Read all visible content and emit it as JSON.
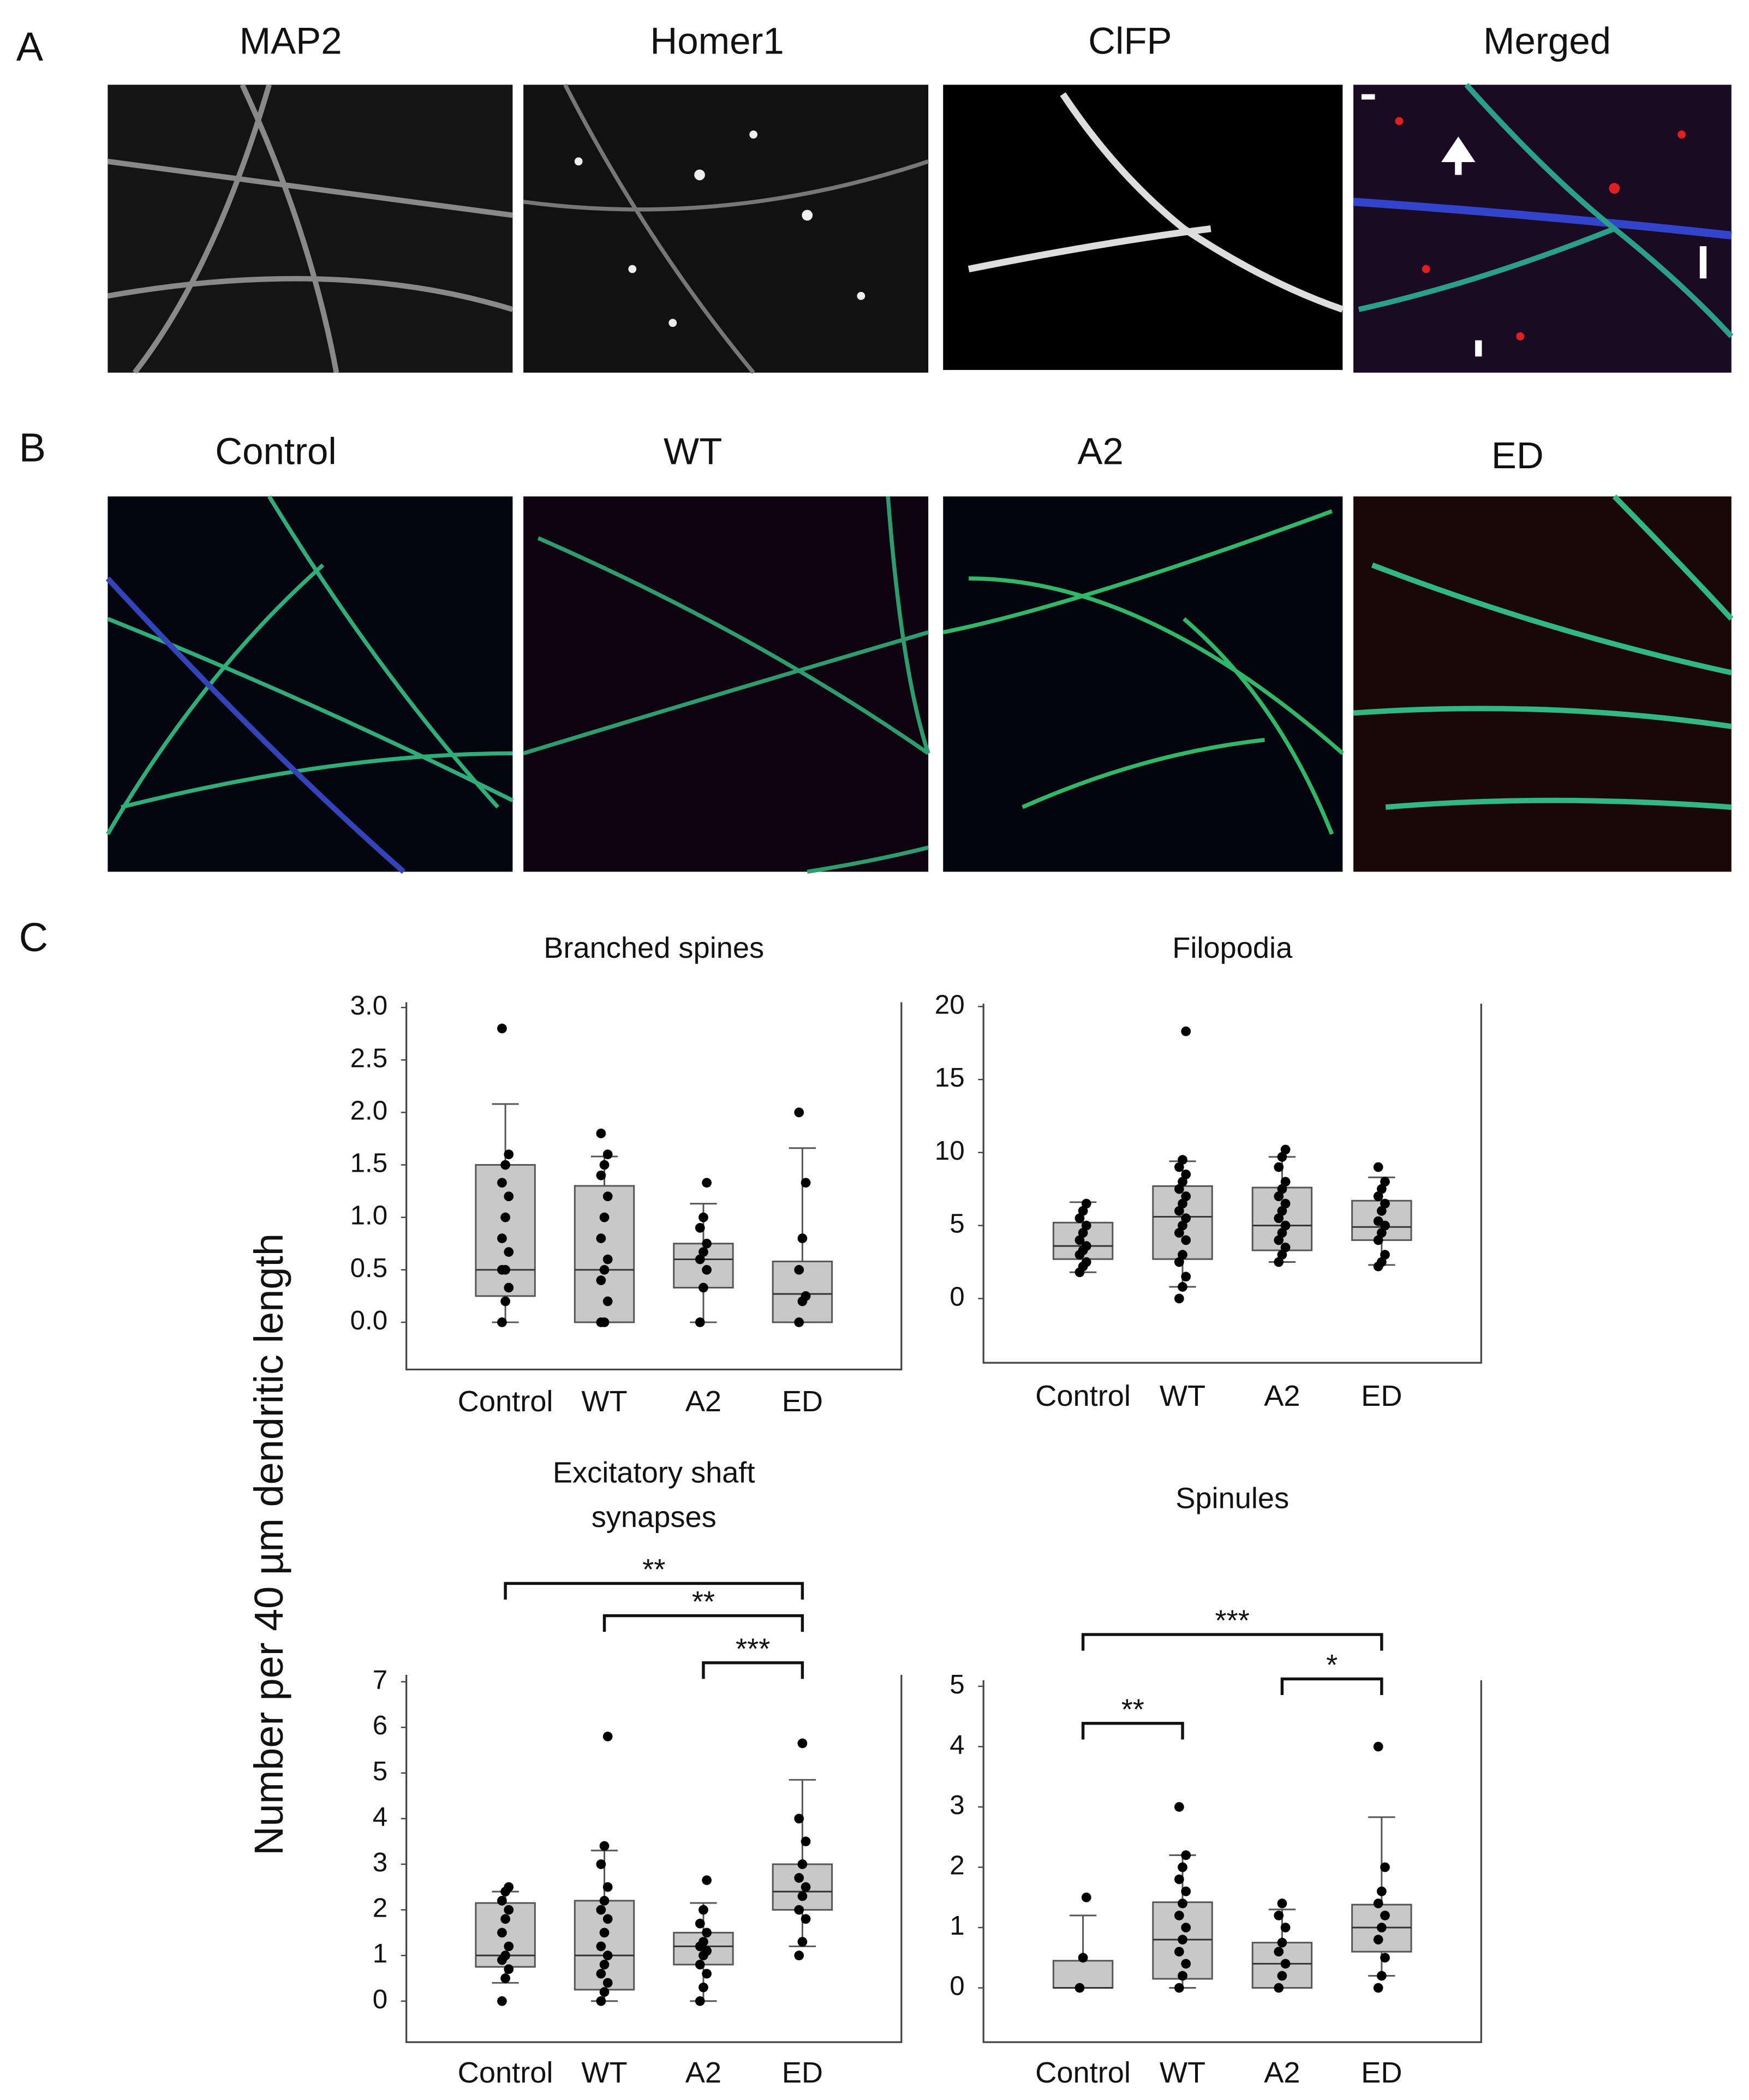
{
  "panel_labels": [
    "A",
    "B",
    "C"
  ],
  "panel_a": {
    "titles": [
      "MAP2",
      "Homer1",
      "ClFP",
      "Merged"
    ]
  },
  "panel_b": {
    "titles": [
      "Control",
      "WT",
      "A2",
      "ED"
    ]
  },
  "y_axis_label": "Number per 40 µm dendritic length",
  "chart_data": [
    {
      "type": "box",
      "title_lines": [
        "Branched spines"
      ],
      "categories": [
        "Control",
        "WT",
        "A2",
        "ED"
      ],
      "ylim": [
        -0.45,
        3.05
      ],
      "yticks": [
        {
          "value": 0,
          "label": "0.0"
        },
        0.5,
        {
          "value": 1,
          "label": "1.0"
        },
        1.5,
        {
          "value": 2,
          "label": "2.0"
        },
        2.5,
        {
          "value": 3,
          "label": "3.0"
        }
      ],
      "box_color": "#c8c8c8",
      "boxes": [
        {
          "whisker_low": 0,
          "q1": 0.25,
          "median": 0.5,
          "q3": 1.5,
          "whisker_high": 2.08,
          "points": [
            0,
            0.2,
            0.33,
            0.5,
            0.5,
            0.67,
            0.8,
            1.0,
            1.2,
            1.33,
            1.5,
            1.6,
            2.8
          ]
        },
        {
          "whisker_low": 0,
          "q1": 0,
          "median": 0.5,
          "q3": 1.3,
          "whisker_high": 1.58,
          "points": [
            0,
            0,
            0.2,
            0.4,
            0.5,
            0.6,
            0.8,
            1.0,
            1.2,
            1.4,
            1.5,
            1.6,
            1.8
          ]
        },
        {
          "whisker_low": 0,
          "q1": 0.33,
          "median": 0.6,
          "q3": 0.75,
          "whisker_high": 1.13,
          "points": [
            0,
            0.33,
            0.5,
            0.6,
            0.67,
            0.75,
            0.9,
            1.0,
            1.33
          ]
        },
        {
          "whisker_low": 0,
          "q1": 0,
          "median": 0.27,
          "q3": 0.58,
          "whisker_high": 1.66,
          "points": [
            0,
            0.2,
            0.25,
            0.5,
            0.8,
            1.33,
            2.0
          ]
        }
      ],
      "significance": []
    },
    {
      "type": "box",
      "title_lines": [
        "Filopodia"
      ],
      "categories": [
        "Control",
        "WT",
        "A2",
        "ED"
      ],
      "ylim": [
        -4.4,
        20.2
      ],
      "yticks": [
        0,
        5,
        10,
        15,
        20
      ],
      "box_color": "#c8c8c8",
      "boxes": [
        {
          "whisker_low": 1.8,
          "q1": 2.7,
          "median": 3.6,
          "q3": 5.2,
          "whisker_high": 6.6,
          "points": [
            1.8,
            2.2,
            2.5,
            3,
            3.3,
            3.6,
            4,
            4.5,
            5,
            5.5,
            6,
            6.5
          ]
        },
        {
          "whisker_low": 0.8,
          "q1": 2.7,
          "median": 5.6,
          "q3": 7.7,
          "whisker_high": 9.4,
          "points": [
            0,
            0.8,
            1.5,
            2.5,
            3,
            4,
            4.5,
            5,
            5.5,
            6,
            6.5,
            7,
            7.5,
            8,
            8.5,
            9,
            9.5,
            18.3
          ]
        },
        {
          "whisker_low": 2.5,
          "q1": 3.3,
          "median": 5,
          "q3": 7.6,
          "whisker_high": 9.7,
          "points": [
            2.5,
            3,
            3.5,
            4,
            4.5,
            5,
            5.5,
            6,
            6.5,
            7,
            7.5,
            8,
            9,
            9.7,
            10.2
          ]
        },
        {
          "whisker_low": 2.3,
          "q1": 4,
          "median": 4.9,
          "q3": 6.7,
          "whisker_high": 8.3,
          "points": [
            2.2,
            2.5,
            3,
            4,
            4.5,
            5,
            5.3,
            6,
            6.5,
            7,
            7.5,
            8,
            9
          ]
        }
      ],
      "significance": []
    },
    {
      "type": "box",
      "title_lines": [
        "Excitatory shaft",
        "synapses"
      ],
      "categories": [
        "Control",
        "WT",
        "A2",
        "ED"
      ],
      "ylim": [
        -0.9,
        7.15
      ],
      "yticks": [
        0,
        1,
        2,
        3,
        4,
        5,
        6,
        7
      ],
      "box_color": "#c8c8c8",
      "boxes": [
        {
          "whisker_low": 0.4,
          "q1": 0.75,
          "median": 1.0,
          "q3": 2.15,
          "whisker_high": 2.4,
          "points": [
            0,
            0.5,
            0.7,
            0.9,
            1,
            1.2,
            1.5,
            1.8,
            2,
            2.2,
            2.4,
            2.5
          ]
        },
        {
          "whisker_low": 0,
          "q1": 0.25,
          "median": 1.0,
          "q3": 2.2,
          "whisker_high": 3.3,
          "points": [
            0,
            0.2,
            0.4,
            0.6,
            0.8,
            1,
            1.2,
            1.5,
            1.8,
            2,
            2.2,
            2.5,
            3,
            3.4,
            5.8
          ]
        },
        {
          "whisker_low": 0,
          "q1": 0.8,
          "median": 1.2,
          "q3": 1.5,
          "whisker_high": 2.15,
          "points": [
            0,
            0.3,
            0.6,
            0.8,
            1,
            1.1,
            1.2,
            1.3,
            1.5,
            1.7,
            2,
            2.65
          ]
        },
        {
          "whisker_low": 1.2,
          "q1": 2.0,
          "median": 2.4,
          "q3": 3.0,
          "whisker_high": 4.85,
          "points": [
            1,
            1.3,
            1.8,
            2,
            2.3,
            2.5,
            2.7,
            3,
            3.5,
            4,
            5.65
          ]
        }
      ],
      "significance": [
        {
          "from": 0,
          "to": 3,
          "label": "**"
        },
        {
          "from": 1,
          "to": 3,
          "label": "**"
        },
        {
          "from": 2,
          "to": 3,
          "label": "***"
        }
      ]
    },
    {
      "type": "box",
      "title_lines": [
        "Spinules"
      ],
      "categories": [
        "Control",
        "WT",
        "A2",
        "ED"
      ],
      "ylim": [
        -0.9,
        5.1
      ],
      "yticks": [
        0,
        1,
        2,
        3,
        4,
        5
      ],
      "box_color": "#c8c8c8",
      "boxes": [
        {
          "whisker_low": 0,
          "q1": 0,
          "median": 0,
          "q3": 0.45,
          "whisker_high": 1.2,
          "points": [
            0,
            0.5,
            1.5
          ]
        },
        {
          "whisker_low": 0,
          "q1": 0.15,
          "median": 0.8,
          "q3": 1.42,
          "whisker_high": 2.2,
          "points": [
            0,
            0.2,
            0.4,
            0.6,
            0.8,
            1,
            1.2,
            1.4,
            1.6,
            1.8,
            2,
            2.2,
            3
          ]
        },
        {
          "whisker_low": 0,
          "q1": 0,
          "median": 0.4,
          "q3": 0.75,
          "whisker_high": 1.3,
          "points": [
            0,
            0.2,
            0.4,
            0.6,
            0.75,
            1,
            1.2,
            1.4
          ]
        },
        {
          "whisker_low": 0.2,
          "q1": 0.6,
          "median": 1.0,
          "q3": 1.38,
          "whisker_high": 2.83,
          "points": [
            0,
            0.2,
            0.5,
            0.8,
            1,
            1.2,
            1.4,
            1.6,
            2,
            4
          ]
        }
      ],
      "significance": [
        {
          "from": 0,
          "to": 3,
          "label": "***"
        },
        {
          "from": 0,
          "to": 1,
          "label": "**"
        },
        {
          "from": 2,
          "to": 3,
          "label": "*"
        }
      ]
    }
  ]
}
